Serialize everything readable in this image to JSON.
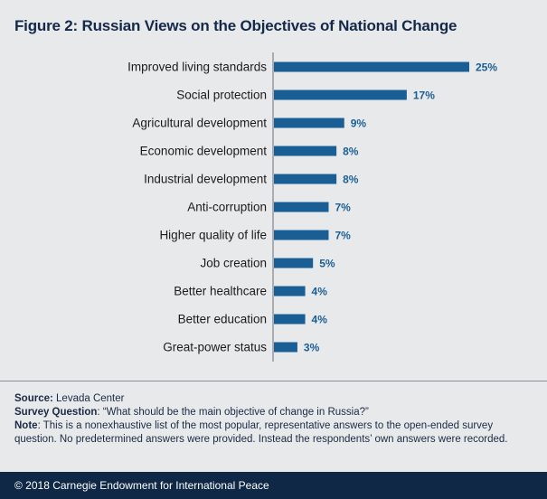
{
  "chart_data": {
    "type": "bar",
    "orientation": "horizontal",
    "title": "Figure 2:  Russian Views on the Objectives of National Change",
    "categories": [
      "Improved living standards",
      "Social protection",
      "Agricultural development",
      "Economic development",
      "Industrial development",
      "Anti-corruption",
      "Higher quality of life",
      "Job creation",
      "Better healthcare",
      "Better education",
      "Great-power status"
    ],
    "values": [
      25,
      17,
      9,
      8,
      8,
      7,
      7,
      5,
      4,
      4,
      3
    ],
    "value_labels": [
      "25%",
      "17%",
      "9%",
      "8%",
      "8%",
      "7%",
      "7%",
      "5%",
      "4%",
      "4%",
      "3%"
    ],
    "unit": "%",
    "xlim": [
      0,
      25
    ],
    "grid": false,
    "bar_color": "#1a5e96"
  },
  "notes": {
    "source_label": "Source:",
    "source": " Levada Center",
    "question_label": "Survey Question",
    "question": ": “What should be the main objective of change in Russia?”",
    "note_label": "Note",
    "note": ": This is a nonexhaustive list of the most popular, representative answers to the open-ended survey question. No predetermined answers were provided. Instead the respondents’ own answers were recorded."
  },
  "footer": "© 2018 Carnegie Endowment for International Peace"
}
